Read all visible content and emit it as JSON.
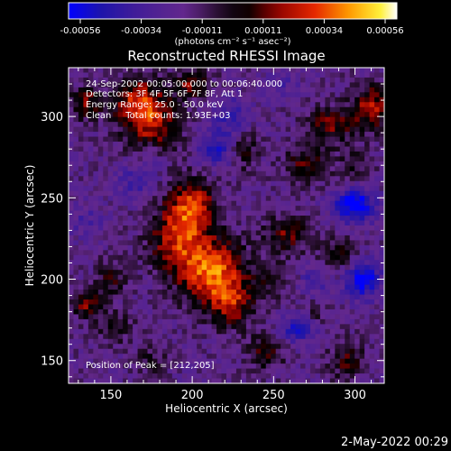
{
  "chart_data": {
    "type": "heatmap",
    "title": "Reconstructed RHESSI Image",
    "xlabel": "Heliocentric X (arcsec)",
    "ylabel": "Heliocentric Y (arcsec)",
    "xlim": [
      124,
      318
    ],
    "ylim": [
      136,
      330
    ],
    "xticks": [
      150,
      200,
      250,
      300
    ],
    "yticks": [
      150,
      200,
      250,
      300
    ],
    "colorbar": {
      "ticks": [
        "-0.00056",
        "-0.00034",
        "-0.00011",
        "0.00011",
        "0.00034",
        "0.00056"
      ],
      "unit_label": "(photons cm⁻² s⁻¹ asec⁻²)",
      "range": [
        -0.00056,
        0.00056
      ]
    },
    "annotations": [
      "24-Sep-2002 00:05:00.000 to 00:06:40.000",
      "Detectors: 3F 4F 5F 6F 7F 8F, Att 1",
      "Energy Range: 25.0 - 50.0 keV",
      "Clean     Total counts: 1.93E+03"
    ],
    "peak_label": "Position of Peak = [212,205]",
    "peak": [
      212,
      205
    ],
    "sources": [
      {
        "x": 212,
        "y": 205,
        "sx": 14,
        "sy": 14,
        "amp": 0.0005
      },
      {
        "x": 200,
        "y": 245,
        "sx": 10,
        "sy": 12,
        "amp": 0.0004
      },
      {
        "x": 190,
        "y": 225,
        "sx": 12,
        "sy": 14,
        "amp": 0.00034
      },
      {
        "x": 225,
        "y": 185,
        "sx": 10,
        "sy": 10,
        "amp": 0.0003
      },
      {
        "x": 175,
        "y": 295,
        "sx": 12,
        "sy": 14,
        "amp": 0.00036
      },
      {
        "x": 165,
        "y": 310,
        "sx": 10,
        "sy": 10,
        "amp": 0.0003
      },
      {
        "x": 200,
        "y": 320,
        "sx": 8,
        "sy": 6,
        "amp": 0.00028
      },
      {
        "x": 232,
        "y": 280,
        "sx": 6,
        "sy": 10,
        "amp": 0.0002
      },
      {
        "x": 135,
        "y": 308,
        "sx": 7,
        "sy": 7,
        "amp": 0.0003
      },
      {
        "x": 135,
        "y": 185,
        "sx": 8,
        "sy": 6,
        "amp": 0.00028
      },
      {
        "x": 150,
        "y": 200,
        "sx": 6,
        "sy": 8,
        "amp": 0.0002
      },
      {
        "x": 153,
        "y": 170,
        "sx": 8,
        "sy": 6,
        "amp": 0.00018
      },
      {
        "x": 310,
        "y": 305,
        "sx": 8,
        "sy": 10,
        "amp": 0.00036
      },
      {
        "x": 285,
        "y": 295,
        "sx": 10,
        "sy": 8,
        "amp": 0.00028
      },
      {
        "x": 270,
        "y": 270,
        "sx": 10,
        "sy": 8,
        "amp": 0.00024
      },
      {
        "x": 258,
        "y": 228,
        "sx": 10,
        "sy": 8,
        "amp": 0.00026
      },
      {
        "x": 290,
        "y": 215,
        "sx": 8,
        "sy": 8,
        "amp": 0.00018
      },
      {
        "x": 250,
        "y": 200,
        "sx": 8,
        "sy": 8,
        "amp": 0.00014
      },
      {
        "x": 245,
        "y": 155,
        "sx": 8,
        "sy": 8,
        "amp": 0.00022
      },
      {
        "x": 295,
        "y": 150,
        "sx": 8,
        "sy": 8,
        "amp": 0.00022
      },
      {
        "x": 175,
        "y": 150,
        "sx": 8,
        "sy": 6,
        "amp": 0.00014
      },
      {
        "x": 275,
        "y": 178,
        "sx": 6,
        "sy": 6,
        "amp": 0.00012
      },
      {
        "x": 300,
        "y": 270,
        "sx": 7,
        "sy": 7,
        "amp": 0.00014
      },
      {
        "x": 300,
        "y": 245,
        "sx": 9,
        "sy": 7,
        "amp": -0.00045
      },
      {
        "x": 305,
        "y": 200,
        "sx": 8,
        "sy": 8,
        "amp": -0.0004
      },
      {
        "x": 215,
        "y": 280,
        "sx": 8,
        "sy": 8,
        "amp": -0.00025
      },
      {
        "x": 225,
        "y": 300,
        "sx": 8,
        "sy": 8,
        "amp": -0.00022
      },
      {
        "x": 165,
        "y": 260,
        "sx": 8,
        "sy": 8,
        "amp": -0.00018
      },
      {
        "x": 175,
        "y": 275,
        "sx": 6,
        "sy": 8,
        "amp": -0.00015
      },
      {
        "x": 265,
        "y": 170,
        "sx": 8,
        "sy": 6,
        "amp": -0.00028
      },
      {
        "x": 135,
        "y": 235,
        "sx": 8,
        "sy": 8,
        "amp": -0.00012
      },
      {
        "x": 255,
        "y": 320,
        "sx": 8,
        "sy": 6,
        "amp": -0.00012
      },
      {
        "x": 275,
        "y": 200,
        "sx": 6,
        "sy": 6,
        "amp": -0.00018
      }
    ]
  },
  "footer": {
    "timestamp": "2-May-2022 00:29"
  }
}
